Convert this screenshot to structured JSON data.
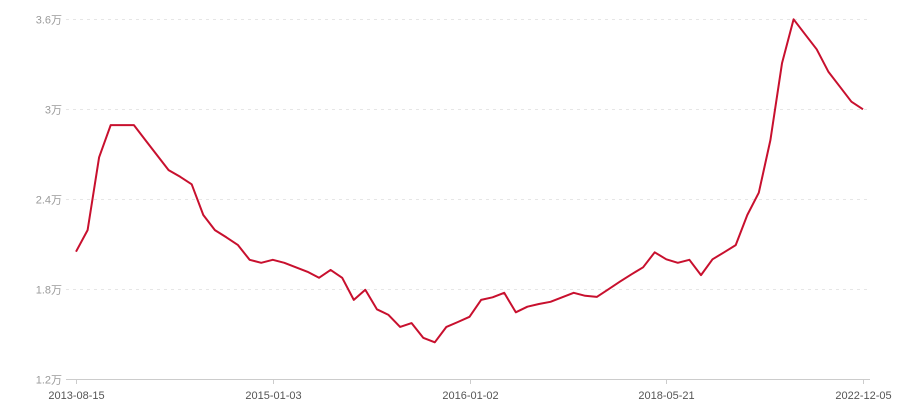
{
  "chart_data": {
    "type": "line",
    "title": "",
    "xlabel": "",
    "ylabel": "",
    "ylim": [
      1.2,
      3.6
    ],
    "y_unit": "万",
    "y_ticks": [
      "1.2万",
      "1.8万",
      "2.4万",
      "3万",
      "3.6万"
    ],
    "y_tick_values": [
      1.2,
      1.8,
      2.4,
      3.0,
      3.6
    ],
    "x_ticks": [
      "2013-08-15",
      "2015-01-03",
      "2016-01-02",
      "2018-05-21",
      "2022-12-05"
    ],
    "x_tick_indices": [
      0,
      17,
      34,
      51,
      68
    ],
    "grid": "horizontal dashed",
    "legend": "none",
    "colors": {
      "line": "#c8102e",
      "grid": "#e6e6e6",
      "axis": "#cccccc"
    },
    "series": [
      {
        "values": [
          2.049,
          2.193,
          2.678,
          2.893,
          2.893,
          2.893,
          2.793,
          2.693,
          2.593,
          2.548,
          2.498,
          2.293,
          2.193,
          2.144,
          2.093,
          1.995,
          1.975,
          1.995,
          1.975,
          1.945,
          1.915,
          1.875,
          1.927,
          1.875,
          1.727,
          1.795,
          1.665,
          1.627,
          1.547,
          1.573,
          1.475,
          1.445,
          1.547,
          1.58,
          1.615,
          1.727,
          1.745,
          1.775,
          1.645,
          1.682,
          1.7,
          1.715,
          1.745,
          1.775,
          1.755,
          1.747,
          1.798,
          1.849,
          1.898,
          1.945,
          2.045,
          1.998,
          1.975,
          1.995,
          1.893,
          1.998,
          2.045,
          2.093,
          2.293,
          2.442,
          2.793,
          3.305,
          3.598,
          3.498,
          3.398,
          3.249,
          3.149,
          3.049,
          2.998
        ]
      }
    ]
  }
}
